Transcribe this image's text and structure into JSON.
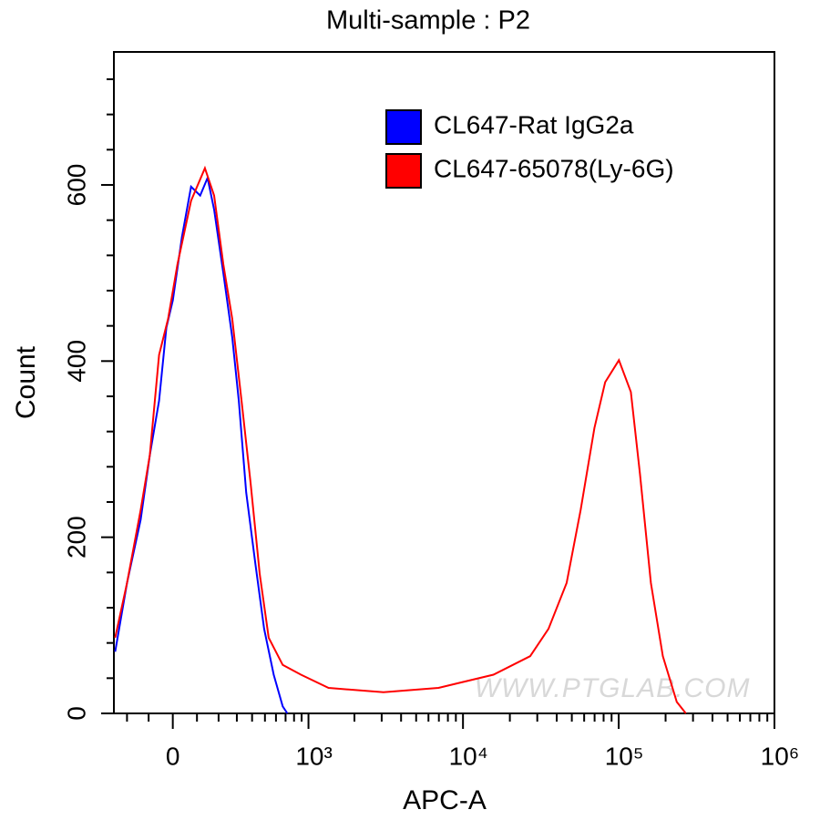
{
  "chart_data": {
    "type": "histogram-overlay",
    "title": "Multi-sample : P2",
    "x_label": "APC-A",
    "y_label": "Count",
    "watermark": "WWW.PTGLAB.COM",
    "xscale": "biexponential",
    "xlim": [
      -270,
      1000000
    ],
    "ylim": [
      0,
      751
    ],
    "xticks": [
      0,
      {
        "value": 1000,
        "label": "10³"
      },
      {
        "value": 10000,
        "label": "10⁴"
      },
      {
        "value": 100000,
        "label": "10⁵"
      },
      {
        "value": 1000000,
        "label": "10⁶"
      }
    ],
    "xminorticks": [
      -200,
      -100,
      100,
      200,
      300,
      400,
      500,
      600,
      700,
      800,
      900,
      2000,
      3000,
      4000,
      5000,
      6000,
      7000,
      8000,
      9000,
      20000,
      30000,
      40000,
      50000,
      60000,
      70000,
      80000,
      90000,
      200000,
      300000,
      400000,
      500000,
      600000,
      700000,
      800000,
      900000
    ],
    "yticks": [
      0,
      200,
      400,
      600
    ],
    "yminorticks": [
      40,
      80,
      120,
      160,
      240,
      280,
      320,
      360,
      440,
      480,
      520,
      560,
      640,
      680,
      720
    ],
    "series": [
      {
        "name": "CL647-Rat IgG2a",
        "color": "#0000ff",
        "x": [
          -263,
          -200,
          -135,
          -95,
          -56,
          -26,
          0,
          37,
          75,
          114,
          147,
          178,
          224,
          273,
          312,
          359,
          425,
          493,
          578,
          669,
          720
        ],
        "values": [
          70,
          148,
          220,
          293,
          355,
          438,
          469,
          541,
          598,
          588,
          608,
          572,
          500,
          427,
          355,
          251,
          169,
          96,
          44,
          8,
          0
        ]
      },
      {
        "name": "CL647-65078(Ly-6G)",
        "color": "#ff0000",
        "x": [
          -263,
          -200,
          -135,
          -95,
          -56,
          -19,
          19,
          75,
          135,
          178,
          224,
          273,
          329,
          389,
          458,
          532,
          669,
          890,
          1356,
          3083,
          6960,
          15700,
          27000,
          35400,
          46300,
          57000,
          69800,
          81800,
          100300,
          119700,
          137000,
          161000,
          192000,
          236000,
          270000
        ],
        "values": [
          86,
          148,
          231,
          293,
          407,
          448,
          510,
          582,
          619,
          588,
          510,
          448,
          355,
          262,
          158,
          86,
          55,
          44,
          29,
          24,
          29,
          44,
          65,
          96,
          148,
          231,
          324,
          376,
          401,
          365,
          272,
          148,
          65,
          13,
          0
        ]
      }
    ]
  }
}
